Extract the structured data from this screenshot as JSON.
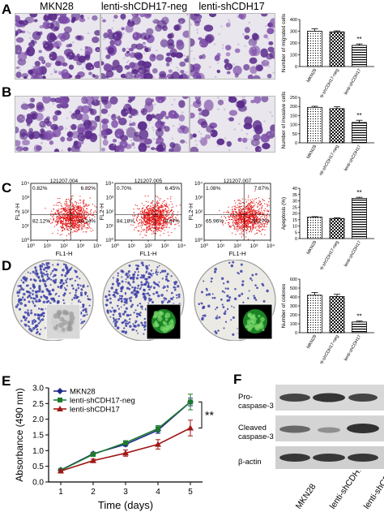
{
  "panel_labels": {
    "a": "A",
    "b": "B",
    "c": "C",
    "d": "D",
    "e": "E",
    "f": "F"
  },
  "column_headers": [
    "MKN28",
    "lenti-shCDH17-neg",
    "lenti-shCDH17"
  ],
  "flow": {
    "ids": [
      "121207.004",
      "121207.005",
      "121207.007"
    ],
    "quadrants": [
      {
        "ul": "0.82%",
        "ur": "6.82%",
        "ll": "82.12%",
        "lr": "10.24%"
      },
      {
        "ul": "0.70%",
        "ur": "6.45%",
        "ll": "84.18%",
        "lr": "8.67%"
      },
      {
        "ul": "1.08%",
        "ur": "7.67%",
        "ll": "65.96%",
        "lr": "25.27%"
      }
    ],
    "xlabel": "FL1-H",
    "ylabel": "FL2-H",
    "ticks": [
      "10⁰",
      "10¹",
      "10²",
      "10³",
      "10⁴"
    ]
  },
  "western": {
    "labels": [
      "Pro-\ncaspase-3",
      "Cleaved\ncaspase-3",
      "β-actin"
    ]
  },
  "sig_marker": "**",
  "chart_data": [
    {
      "type": "bar",
      "panel": "A",
      "categories": [
        "MKN28",
        "lenti-shCDH17-neg",
        "lenti-shCDH17"
      ],
      "values": [
        300,
        295,
        180
      ],
      "errors": [
        20,
        8,
        12
      ],
      "ylabel": "Number of migrated cells",
      "ylim": [
        0,
        400
      ],
      "yticks": [
        0,
        100,
        200,
        300,
        400
      ],
      "annotation": "**",
      "annotation_index": 2,
      "patterns": [
        "dots",
        "checker",
        "hstripe"
      ]
    },
    {
      "type": "bar",
      "panel": "B",
      "categories": [
        "MKN28",
        "lenti-shCDH17-neg",
        "lenti-shCDH17"
      ],
      "values": [
        195,
        188,
        112
      ],
      "errors": [
        6,
        10,
        12
      ],
      "ylabel": "Number of invasive cells",
      "ylim": [
        0,
        250
      ],
      "yticks": [
        0,
        50,
        100,
        150,
        200,
        250
      ],
      "annotation": "**",
      "annotation_index": 2,
      "patterns": [
        "dots",
        "checker",
        "hstripe"
      ]
    },
    {
      "type": "bar",
      "panel": "C",
      "categories": [
        "MKN28",
        "lenti-shCDH17-neg",
        "lenti-shCDH17"
      ],
      "values": [
        17,
        16,
        32
      ],
      "errors": [
        0.4,
        0.5,
        0.8
      ],
      "ylabel": "Apoptosis (%)",
      "ylim": [
        0,
        40
      ],
      "yticks": [
        0,
        5,
        10,
        15,
        20,
        25,
        30,
        35,
        40
      ],
      "annotation": "**",
      "annotation_index": 2,
      "patterns": [
        "dots",
        "checker",
        "hstripe"
      ]
    },
    {
      "type": "bar",
      "panel": "D",
      "categories": [
        "MKN28",
        "lenti-shCDH17-neg",
        "lenti-shCDH17"
      ],
      "values": [
        420,
        405,
        120
      ],
      "errors": [
        30,
        25,
        10
      ],
      "ylabel": "Number of colones",
      "ylim": [
        0,
        600
      ],
      "yticks": [
        0,
        100,
        200,
        300,
        400,
        500,
        600
      ],
      "annotation": "**",
      "annotation_index": 2,
      "patterns": [
        "dots",
        "checker",
        "hstripe"
      ]
    },
    {
      "type": "line",
      "panel": "E",
      "x": [
        1,
        2,
        3,
        4,
        5
      ],
      "xlabel": "Time (days)",
      "ylabel": "Absorbance (490 nm)",
      "ylim": [
        0,
        3.0
      ],
      "yticks": [
        0.0,
        0.5,
        1.0,
        1.5,
        2.0,
        2.5,
        3.0
      ],
      "xticks": [
        1,
        2,
        3,
        4,
        5
      ],
      "annotation": "**",
      "series": [
        {
          "name": "MKN28",
          "values": [
            0.38,
            0.9,
            1.2,
            1.65,
            2.55
          ],
          "errors": [
            0.03,
            0.05,
            0.06,
            0.1,
            0.12
          ],
          "color": "#1f2a8c",
          "marker": "diamond"
        },
        {
          "name": "lenti-shCDH17-neg",
          "values": [
            0.37,
            0.88,
            1.25,
            1.7,
            2.55
          ],
          "errors": [
            0.03,
            0.05,
            0.06,
            0.1,
            0.25
          ],
          "color": "#1e7a2e",
          "marker": "square"
        },
        {
          "name": "lenti-shCDH17",
          "values": [
            0.35,
            0.68,
            0.92,
            1.2,
            1.72
          ],
          "errors": [
            0.03,
            0.05,
            0.1,
            0.15,
            0.25
          ],
          "color": "#a01818",
          "marker": "triangle"
        }
      ]
    }
  ]
}
